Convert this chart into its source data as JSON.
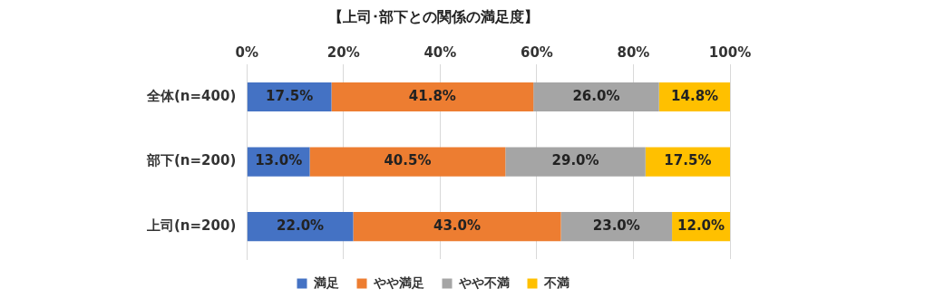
{
  "chart_data": {
    "type": "bar",
    "title": "【上司･部下との関係の満足度】",
    "orientation": "horizontal",
    "stacked": true,
    "categories": [
      "全体(n=400)",
      "部下(n=200)",
      "上司(n=200)"
    ],
    "series": [
      {
        "name": "満足",
        "color": "#4472c4",
        "values": [
          17.5,
          13.0,
          22.0
        ],
        "value_labels": [
          "17.5%",
          "13.0%",
          "22.0%"
        ]
      },
      {
        "name": "やや満足",
        "color": "#ed7d31",
        "values": [
          41.8,
          40.5,
          43.0
        ],
        "value_labels": [
          "41.8%",
          "40.5%",
          "43.0%"
        ]
      },
      {
        "name": "やや不満",
        "color": "#a5a5a5",
        "values": [
          26.0,
          29.0,
          23.0
        ],
        "value_labels": [
          "26.0%",
          "29.0%",
          "23.0%"
        ]
      },
      {
        "name": "不満",
        "color": "#ffc000",
        "values": [
          14.8,
          17.5,
          12.0
        ],
        "value_labels": [
          "14.8%",
          "17.5%",
          "12.0%"
        ]
      }
    ],
    "xlim": [
      0,
      100
    ],
    "xticks": [
      {
        "value": 0,
        "label": "0%"
      },
      {
        "value": 20,
        "label": "20%"
      },
      {
        "value": 40,
        "label": "40%"
      },
      {
        "value": 60,
        "label": "60%"
      },
      {
        "value": 80,
        "label": "80%"
      },
      {
        "value": 100,
        "label": "100%"
      }
    ],
    "grid": "x",
    "legend": "bottom"
  }
}
